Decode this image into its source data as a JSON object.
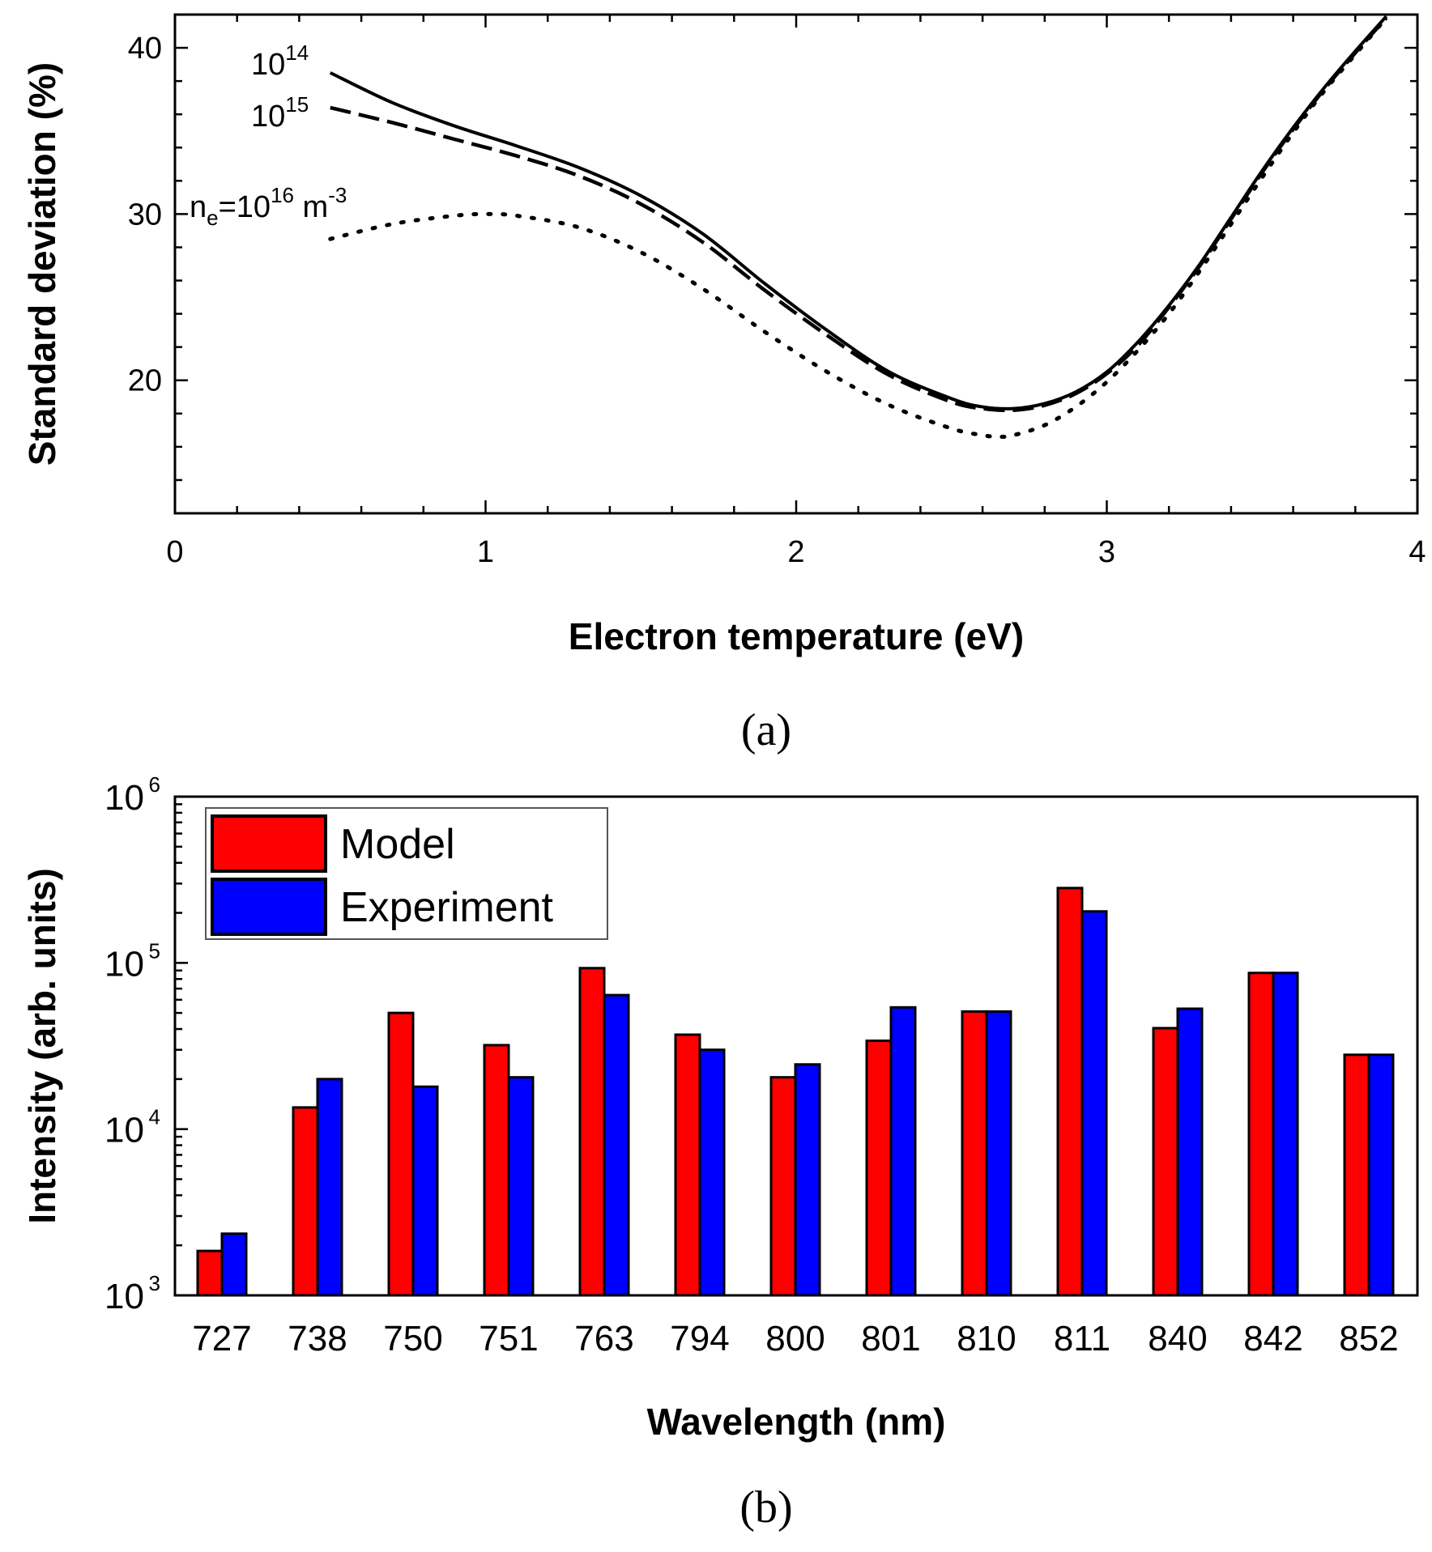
{
  "chart_data": [
    {
      "panel": "(a)",
      "type": "line",
      "xlabel": "Electron temperature (eV)",
      "ylabel": "Standard deviation (%)",
      "xlim": [
        0,
        4
      ],
      "ylim": [
        12,
        42
      ],
      "xticks": [
        "0",
        "1",
        "2",
        "3",
        "4"
      ],
      "xtick_values": [
        0,
        1,
        2,
        3,
        4
      ],
      "yticks": [
        "20",
        "30",
        "40"
      ],
      "ytick_values": [
        20,
        30,
        40
      ],
      "series": [
        {
          "name": "1e14",
          "style": "solid",
          "x": [
            0.5,
            0.7,
            0.9,
            1.1,
            1.3,
            1.5,
            1.7,
            1.9,
            2.1,
            2.3,
            2.5,
            2.6,
            2.7,
            2.8,
            2.9,
            3.0,
            3.1,
            3.2,
            3.3,
            3.4,
            3.5,
            3.6,
            3.7,
            3.8,
            3.9
          ],
          "y": [
            38.5,
            36.7,
            35.3,
            34.1,
            32.8,
            31.1,
            28.8,
            25.8,
            23.0,
            20.5,
            18.9,
            18.4,
            18.3,
            18.6,
            19.3,
            20.5,
            22.3,
            24.5,
            27.0,
            29.8,
            32.6,
            35.2,
            37.6,
            39.8,
            41.9
          ]
        },
        {
          "name": "1e15",
          "style": "dashed",
          "x": [
            0.5,
            0.7,
            0.9,
            1.1,
            1.3,
            1.5,
            1.7,
            1.9,
            2.1,
            2.3,
            2.5,
            2.6,
            2.7,
            2.8,
            2.9,
            3.0,
            3.1,
            3.2,
            3.3,
            3.4,
            3.5,
            3.6,
            3.7,
            3.8,
            3.9
          ],
          "y": [
            36.4,
            35.5,
            34.5,
            33.5,
            32.3,
            30.6,
            28.3,
            25.4,
            22.7,
            20.3,
            18.7,
            18.3,
            18.2,
            18.5,
            19.2,
            20.4,
            22.1,
            24.4,
            26.9,
            29.7,
            32.5,
            35.1,
            37.5,
            39.7,
            41.8
          ]
        },
        {
          "name": "1e16",
          "style": "dotted",
          "x": [
            0.5,
            0.7,
            0.9,
            1.0,
            1.1,
            1.3,
            1.5,
            1.7,
            1.9,
            2.1,
            2.3,
            2.5,
            2.6,
            2.65,
            2.7,
            2.8,
            2.9,
            3.0,
            3.1,
            3.2,
            3.3,
            3.4,
            3.5,
            3.6,
            3.7,
            3.8,
            3.9
          ],
          "y": [
            28.5,
            29.4,
            29.9,
            30.0,
            29.9,
            29.2,
            27.7,
            25.5,
            22.9,
            20.5,
            18.5,
            17.1,
            16.7,
            16.6,
            16.7,
            17.3,
            18.4,
            19.9,
            21.8,
            24.0,
            26.6,
            29.4,
            32.2,
            34.9,
            37.4,
            39.6,
            41.8
          ]
        }
      ],
      "annotations": [
        {
          "base": "10",
          "sup": "14"
        },
        {
          "base": "10",
          "sup": "15"
        },
        {
          "pre": "n",
          "sub": "e",
          "mid": "=10",
          "sup": "16",
          "post": " m",
          "sup2": "-3"
        }
      ]
    },
    {
      "panel": "(b)",
      "type": "bar",
      "yscale": "log",
      "xlabel": "Wavelength (nm)",
      "ylabel": "Intensity (arb. units)",
      "ylim": [
        1000,
        1000000
      ],
      "yticks": [
        {
          "base": "10",
          "exp": "3"
        },
        {
          "base": "10",
          "exp": "4"
        },
        {
          "base": "10",
          "exp": "5"
        },
        {
          "base": "10",
          "exp": "6"
        }
      ],
      "categories": [
        "727",
        "738",
        "750",
        "751",
        "763",
        "794",
        "800",
        "801",
        "810",
        "811",
        "840",
        "842",
        "852"
      ],
      "series": [
        {
          "name": "Model",
          "color": "#ff0000",
          "values": [
            1850,
            13500,
            50000,
            32000,
            93000,
            37000,
            20500,
            34000,
            51000,
            282000,
            40500,
            87000,
            28000
          ]
        },
        {
          "name": "Experiment",
          "color": "#0000ff",
          "values": [
            2350,
            20000,
            18000,
            20500,
            64000,
            30000,
            24500,
            54000,
            51000,
            204000,
            53000,
            87000,
            28000
          ]
        }
      ]
    }
  ],
  "labels": {
    "panel_a": "(a)",
    "panel_b": "(b)"
  }
}
